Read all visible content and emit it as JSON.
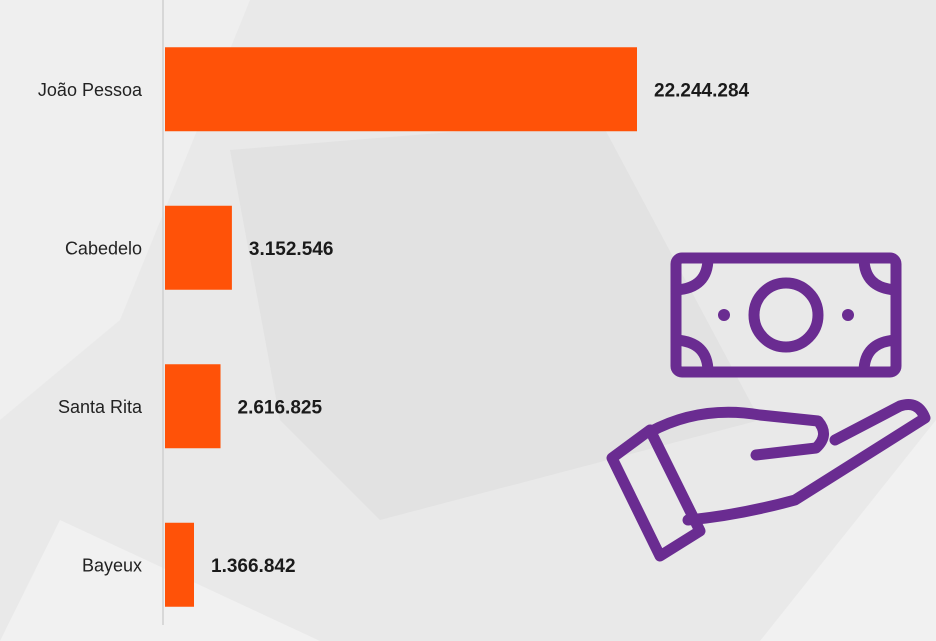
{
  "chart_data": {
    "type": "bar",
    "categories": [
      "João Pessoa",
      "Cabedelo",
      "Santa Rita",
      "Bayeux"
    ],
    "values": [
      22244284,
      3152546,
      2616825,
      1366842
    ],
    "value_labels": [
      "22.244.284",
      "3.152.546",
      "2.616.825",
      "1.366.842"
    ],
    "color": "#ff5208"
  }
}
